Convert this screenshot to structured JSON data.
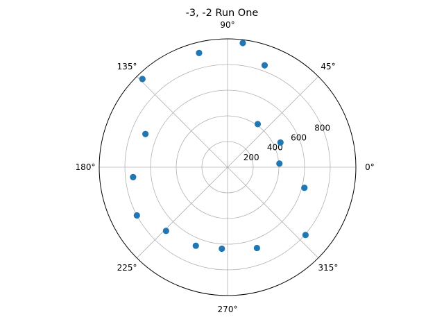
{
  "chart_data": {
    "type": "scatter",
    "projection": "polar",
    "title": "-3, -2 Run One",
    "theta_unit": "degrees",
    "theta_ticks": [
      0,
      45,
      90,
      135,
      180,
      225,
      270,
      315
    ],
    "theta_tick_labels": [
      "0°",
      "45°",
      "90°",
      "135°",
      "180°",
      "225°",
      "270°",
      "315°"
    ],
    "r_ticks": [
      200,
      400,
      600,
      800
    ],
    "r_tick_labels": [
      "200",
      "400",
      "600",
      "800"
    ],
    "rlim": [
      0,
      1000
    ],
    "grid": true,
    "marker_color": "#1f77b4",
    "series": [
      {
        "theta": [
          4,
          25,
          55,
          70,
          83,
          104,
          134,
          158,
          186,
          208,
          226,
          248,
          266,
          290,
          319,
          345
        ],
        "r": [
          405,
          455,
          410,
          845,
          975,
          917,
          955,
          690,
          740,
          800,
          690,
          660,
          637,
          670,
          805,
          620
        ]
      }
    ]
  }
}
